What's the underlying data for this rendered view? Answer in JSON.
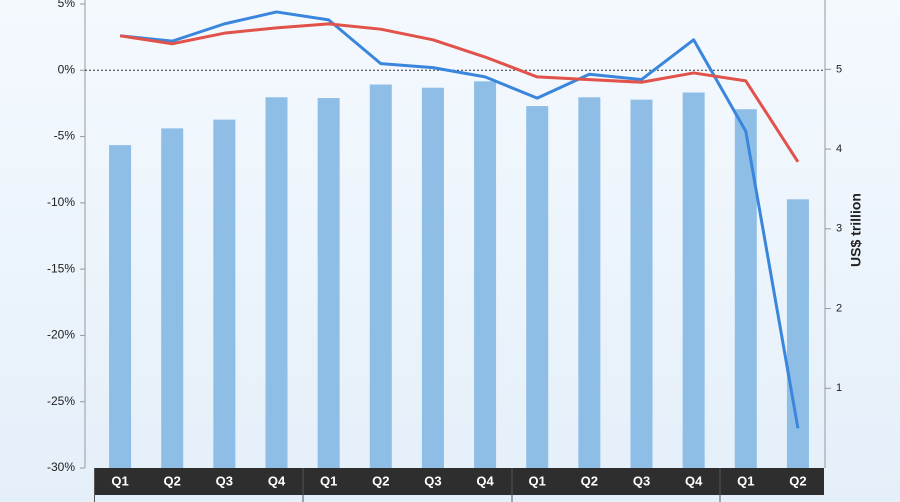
{
  "chart_data": {
    "type": "bar-line",
    "y2label": "US$ trillion",
    "categories": [
      "Q1",
      "Q2",
      "Q3",
      "Q4",
      "Q1",
      "Q2",
      "Q3",
      "Q4",
      "Q1",
      "Q2",
      "Q3",
      "Q4",
      "Q1",
      "Q2"
    ],
    "ylim": [
      -30,
      5
    ],
    "yticks": [
      {
        "value": 5,
        "label": "5%"
      },
      {
        "value": 0,
        "label": "0%"
      },
      {
        "value": -5,
        "label": "-5%"
      },
      {
        "value": -10,
        "label": "-10%"
      },
      {
        "value": -15,
        "label": "-15%"
      },
      {
        "value": -20,
        "label": "-20%"
      },
      {
        "value": -25,
        "label": "-25%"
      },
      {
        "value": -30,
        "label": "-30%"
      }
    ],
    "y2lim": [
      0,
      5.82
    ],
    "y2ticks": [
      1,
      2,
      3,
      4,
      5
    ],
    "series": [
      {
        "type": "bar",
        "axis": "y2",
        "color": "#8ebde6",
        "values": [
          4.05,
          4.26,
          4.37,
          4.65,
          4.64,
          4.81,
          4.77,
          4.85,
          4.54,
          4.65,
          4.62,
          4.71,
          4.5,
          3.37
        ]
      },
      {
        "type": "line",
        "color": "#3a86dc",
        "values": [
          2.6,
          2.2,
          3.5,
          4.4,
          3.8,
          0.5,
          0.2,
          -0.5,
          -2.1,
          -0.3,
          -0.7,
          2.3,
          -4.6,
          -27.0
        ]
      },
      {
        "type": "line",
        "color": "#e0524a",
        "values": [
          2.6,
          2.0,
          2.8,
          3.2,
          3.5,
          3.1,
          2.3,
          1.0,
          -0.5,
          -0.7,
          -0.9,
          -0.2,
          -0.8,
          -6.9
        ]
      }
    ]
  }
}
